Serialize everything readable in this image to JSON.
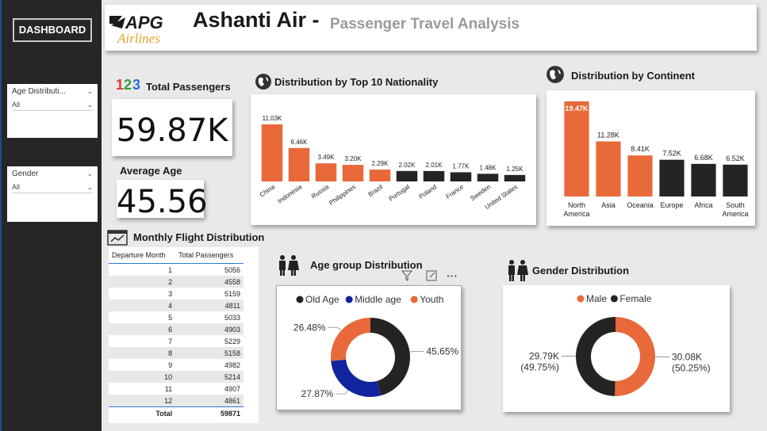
{
  "header": {
    "logo_text": "APG",
    "logo_sub": "Airlines",
    "title": "Ashanti Air -",
    "subtitle": "Passenger Travel Analysis"
  },
  "sidebar": {
    "dashboard_label": "DASHBOARD",
    "slicers": [
      {
        "label": "Age Distributi...",
        "value": "All"
      },
      {
        "label": "Gender",
        "value": "All"
      }
    ]
  },
  "kpis": {
    "total_passengers_label": "Total Passengers",
    "total_passengers_value": "59.87K",
    "average_age_label": "Average Age",
    "average_age_value": "45.56",
    "icon_123": "123"
  },
  "titles": {
    "nationality": "Distribution by Top 10 Nationality",
    "continent": "Distribution by Continent",
    "monthly": "Monthly Flight Distribution",
    "age_group": "Age group Distribution",
    "gender": "Gender Distribution"
  },
  "monthly_table": {
    "headers": [
      "Departure Month",
      "Total Passengers"
    ],
    "rows": [
      [
        "1",
        "5056"
      ],
      [
        "2",
        "4558"
      ],
      [
        "3",
        "5159"
      ],
      [
        "4",
        "4811"
      ],
      [
        "5",
        "5033"
      ],
      [
        "6",
        "4903"
      ],
      [
        "7",
        "5229"
      ],
      [
        "8",
        "5158"
      ],
      [
        "9",
        "4982"
      ],
      [
        "10",
        "5214"
      ],
      [
        "11",
        "4907"
      ],
      [
        "12",
        "4861"
      ]
    ],
    "total_label": "Total",
    "total_value": "59871"
  },
  "colors": {
    "orange": "#e8693a",
    "dark": "#252423",
    "blue": "#12239e"
  },
  "chart_data": [
    {
      "id": "nationality",
      "type": "bar",
      "title": "Distribution by Top 10 Nationality",
      "categories": [
        "China",
        "Indonesia",
        "Russia",
        "Philippines",
        "Brazil",
        "Portugal",
        "Poland",
        "France",
        "Sweden",
        "United States"
      ],
      "values": [
        11.03,
        6.46,
        3.49,
        3.2,
        2.29,
        2.02,
        2.01,
        1.77,
        1.48,
        1.25
      ],
      "labels": [
        "11.03K",
        "6.46K",
        "3.49K",
        "3.20K",
        "2.29K",
        "2.02K",
        "2.01K",
        "1.77K",
        "1.48K",
        "1.25K"
      ],
      "unit": "K",
      "bar_colors": [
        "orange",
        "orange",
        "orange",
        "orange",
        "orange",
        "dark",
        "dark",
        "dark",
        "dark",
        "dark"
      ]
    },
    {
      "id": "continent",
      "type": "bar",
      "title": "Distribution by Continent",
      "categories": [
        "North America",
        "Asia",
        "Oceania",
        "Europe",
        "Africa",
        "South America"
      ],
      "values": [
        19.47,
        11.28,
        8.41,
        7.52,
        6.68,
        6.52
      ],
      "labels": [
        "19.47K",
        "11.28K",
        "8.41K",
        "7.52K",
        "6.68K",
        "6.52K"
      ],
      "unit": "K",
      "bar_colors": [
        "orange",
        "orange",
        "orange",
        "dark",
        "dark",
        "dark"
      ]
    },
    {
      "id": "age_group",
      "type": "pie",
      "title": "Age group Distribution",
      "legend": [
        "Old Age",
        "Middle age",
        "Youth"
      ],
      "series": [
        {
          "name": "Old Age",
          "value": 45.65,
          "label": "45.65%",
          "color": "#252423"
        },
        {
          "name": "Middle age",
          "value": 27.87,
          "label": "27.87%",
          "color": "#12239e"
        },
        {
          "name": "Youth",
          "value": 26.48,
          "label": "26.48%",
          "color": "#e8693a"
        }
      ]
    },
    {
      "id": "gender",
      "type": "pie",
      "title": "Gender Distribution",
      "legend": [
        "Male",
        "Female"
      ],
      "series": [
        {
          "name": "Male",
          "value": 50.25,
          "label": "30.08K",
          "sublabel": "(50.25%)",
          "color": "#e8693a"
        },
        {
          "name": "Female",
          "value": 49.75,
          "label": "29.79K",
          "sublabel": "(49.75%)",
          "color": "#252423"
        }
      ]
    }
  ]
}
